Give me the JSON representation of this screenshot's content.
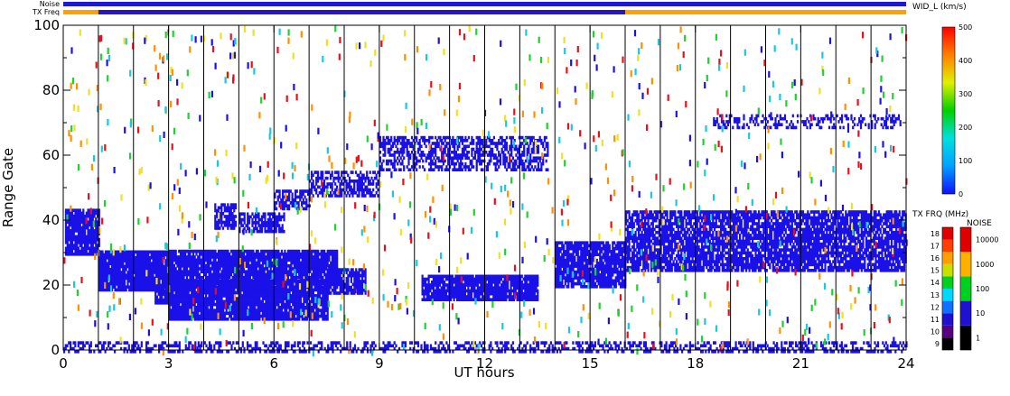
{
  "chart_data": {
    "type": "heatmap",
    "xlabel": "UT hours",
    "ylabel": "Range Gate",
    "xlim": [
      0,
      24
    ],
    "ylim": [
      0,
      100
    ],
    "x_ticks": [
      "0",
      "3",
      "6",
      "9",
      "12",
      "15",
      "18",
      "21",
      "24"
    ],
    "y_ticks": [
      "0",
      "20",
      "40",
      "60",
      "80",
      "100"
    ],
    "hour_lines": [
      1,
      2,
      3,
      4,
      5,
      6,
      7,
      8,
      9,
      10,
      11,
      12,
      13,
      14,
      15,
      16,
      17,
      18,
      19,
      20,
      21,
      22,
      23
    ],
    "top_bars": [
      {
        "label": "Noise",
        "segments": [
          {
            "from": 0,
            "to": 24,
            "color": "#1b18d8"
          }
        ]
      },
      {
        "label": "TX Freq",
        "segments": [
          {
            "from": 0,
            "to": 1,
            "color": "#ffa200"
          },
          {
            "from": 1,
            "to": 16,
            "color": "#2a14c8"
          },
          {
            "from": 16,
            "to": 24,
            "color": "#ffa200"
          }
        ]
      }
    ],
    "scatter_bands": [
      {
        "x0": 0.05,
        "x1": 1.0,
        "yc": 37,
        "h": 14,
        "density": 0.9,
        "color": "#1a10e8"
      },
      {
        "x0": 1.0,
        "x1": 3.1,
        "yc": 25,
        "h": 12,
        "density": 0.95,
        "color": "#1a10e8"
      },
      {
        "x0": 2.6,
        "x1": 3.1,
        "yc": 18,
        "h": 6,
        "density": 0.9,
        "color": "#1a10e8"
      },
      {
        "x0": 3.0,
        "x1": 7.5,
        "yc": 16,
        "h": 12,
        "density": 0.95,
        "color": "#1a10e8"
      },
      {
        "x0": 3.0,
        "x1": 7.8,
        "yc": 26,
        "h": 10,
        "density": 0.93,
        "color": "#1a10e8"
      },
      {
        "x0": 7.5,
        "x1": 8.6,
        "yc": 22,
        "h": 8,
        "density": 0.8,
        "color": "#1a10e8"
      },
      {
        "x0": 4.3,
        "x1": 4.9,
        "yc": 42,
        "h": 8,
        "density": 0.75,
        "color": "#1a10e8"
      },
      {
        "x0": 5.0,
        "x1": 6.3,
        "yc": 40,
        "h": 6,
        "density": 0.7,
        "color": "#1a10e8"
      },
      {
        "x0": 6.0,
        "x1": 7.0,
        "yc": 47,
        "h": 6,
        "density": 0.6,
        "color": "#1a10e8"
      },
      {
        "x0": 7.0,
        "x1": 9.0,
        "yc": 52,
        "h": 8,
        "density": 0.6,
        "color": "#1a10e8"
      },
      {
        "x0": 9.0,
        "x1": 13.8,
        "yc": 61,
        "h": 10,
        "density": 0.55,
        "color": "#1a10e8"
      },
      {
        "x0": 10.2,
        "x1": 13.5,
        "yc": 20,
        "h": 8,
        "density": 0.9,
        "color": "#1a10e8"
      },
      {
        "x0": 14.0,
        "x1": 16.0,
        "yc": 27,
        "h": 14,
        "density": 0.85,
        "color": "#1a10e8"
      },
      {
        "x0": 16.0,
        "x1": 24.0,
        "yc": 34,
        "h": 18,
        "density": 0.8,
        "color": "#1a10e8"
      },
      {
        "x0": 18.5,
        "x1": 23.9,
        "yc": 71,
        "h": 4,
        "density": 0.35,
        "color": "#1a10e8"
      },
      {
        "x0": 0,
        "x1": 24,
        "yc": 1.5,
        "h": 3,
        "density": 0.45,
        "color": "#1a10e8"
      }
    ],
    "scatter_noise": {
      "count": 900,
      "colors": [
        "#e8101a",
        "#1a10e8",
        "#18c8e0",
        "#20d030",
        "#f0e020",
        "#ff9000"
      ]
    },
    "colorbar_velocity": {
      "title": "WID_L (km/s)",
      "ticks": [
        "0",
        "100",
        "200",
        "300",
        "400",
        "500"
      ],
      "stops": [
        "#1010ff",
        "#00a0ff",
        "#00e0e0",
        "#00d000",
        "#e0f000",
        "#ff8000",
        "#ff0000"
      ]
    },
    "colorbar_txfreq": {
      "title": "TX FRQ (MHz)",
      "ticks": [
        "9",
        "10",
        "11",
        "12",
        "13",
        "14",
        "15",
        "16",
        "17",
        "18"
      ],
      "colors": [
        "#000000",
        "#5a0080",
        "#2010d0",
        "#1070ff",
        "#00d8ff",
        "#00d020",
        "#c8e000",
        "#ffa000",
        "#ff4000",
        "#e00000"
      ]
    },
    "colorbar_noise": {
      "title": "NOISE",
      "ticks": [
        "1",
        "10",
        "100",
        "1000",
        "10000"
      ],
      "colors": [
        "#000000",
        "#2010d0",
        "#00d020",
        "#ffb000",
        "#e00000"
      ]
    }
  }
}
